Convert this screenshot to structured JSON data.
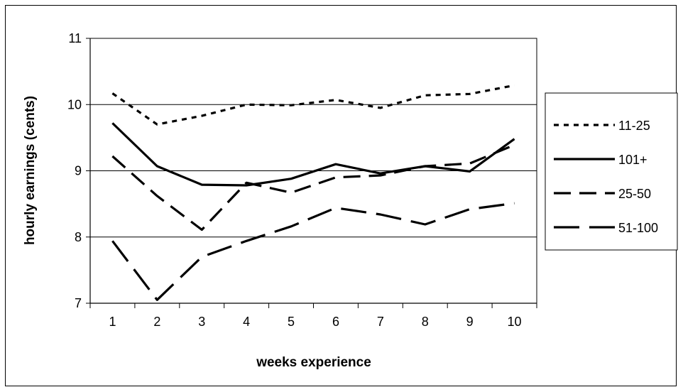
{
  "chart_data": {
    "type": "line",
    "title": "",
    "xlabel": "weeks experience",
    "ylabel": "hourly earnings (cents)",
    "x": [
      1,
      2,
      3,
      4,
      5,
      6,
      7,
      8,
      9,
      10
    ],
    "ylim": [
      7,
      11
    ],
    "yticks": [
      7,
      8,
      9,
      10,
      11
    ],
    "grid": "horizontal major lines",
    "legend_position": "right",
    "series": [
      {
        "name": "11-25",
        "style": "dotted",
        "color": "#000000",
        "values": [
          10.17,
          9.7,
          9.83,
          10.0,
          9.99,
          10.07,
          9.95,
          10.14,
          10.16,
          10.29
        ]
      },
      {
        "name": "101+",
        "style": "solid",
        "color": "#000000",
        "values": [
          9.72,
          9.07,
          8.79,
          8.78,
          8.88,
          9.1,
          8.96,
          9.07,
          8.99,
          9.48
        ]
      },
      {
        "name": "25-50",
        "style": "dashed",
        "color": "#000000",
        "values": [
          9.22,
          8.62,
          8.11,
          8.82,
          8.67,
          8.9,
          8.93,
          9.07,
          9.11,
          9.39
        ]
      },
      {
        "name": "51-100",
        "style": "long-dash",
        "color": "#000000",
        "values": [
          7.94,
          7.05,
          7.7,
          7.94,
          8.16,
          8.44,
          8.34,
          8.19,
          8.42,
          8.51
        ]
      }
    ]
  }
}
